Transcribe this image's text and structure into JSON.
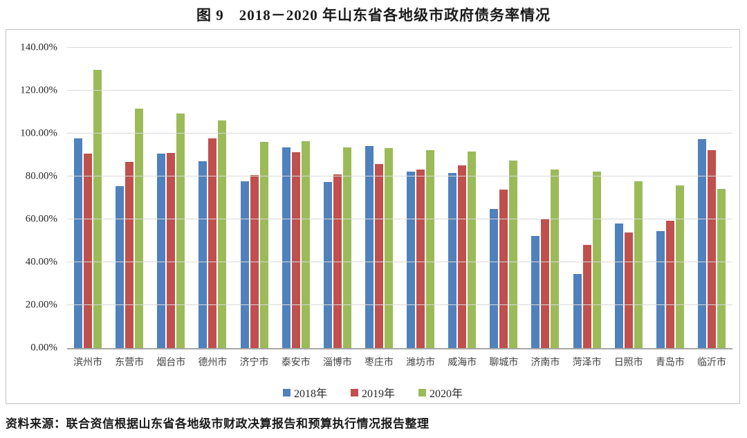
{
  "figure": {
    "title": "图 9　2018－2020 年山东省各地级市政府债务率情况",
    "source_note": "资料来源：联合资信根据山东省各地级市财政决算报告和预算执行情况报告整理"
  },
  "chart_data": {
    "type": "bar",
    "title": "图 9　2018－2020 年山东省各地级市政府债务率情况",
    "categories": [
      "滨州市",
      "东营市",
      "烟台市",
      "德州市",
      "济宁市",
      "泰安市",
      "淄博市",
      "枣庄市",
      "潍坊市",
      "威海市",
      "聊城市",
      "济南市",
      "菏泽市",
      "日照市",
      "青岛市",
      "临沂市"
    ],
    "series": [
      {
        "name": "2018年",
        "color": "#4F81BD",
        "values": [
          97.6,
          75.5,
          90.6,
          87.1,
          77.8,
          93.5,
          77.5,
          94.2,
          82.3,
          81.5,
          64.7,
          52.4,
          34.5,
          58.2,
          54.5,
          97.4
        ]
      },
      {
        "name": "2019年",
        "color": "#C0504D",
        "values": [
          90.7,
          86.8,
          91.0,
          97.9,
          80.8,
          91.2,
          80.9,
          85.7,
          83.3,
          85.3,
          74.0,
          59.9,
          48.1,
          53.8,
          59.2,
          92.3
        ]
      },
      {
        "name": "2020年",
        "color": "#9BBB59",
        "values": [
          129.7,
          111.5,
          109.2,
          106.2,
          96.2,
          96.3,
          93.5,
          93.1,
          92.2,
          91.5,
          87.3,
          83.2,
          82.4,
          77.9,
          75.9,
          74.1
        ]
      }
    ],
    "xlabel": "",
    "ylabel": "",
    "ylim": [
      0,
      140
    ],
    "y_ticks": [
      "0.00%",
      "20.00%",
      "40.00%",
      "60.00%",
      "80.00%",
      "100.00%",
      "120.00%",
      "140.00%"
    ],
    "grid": true,
    "legend_position": "bottom",
    "unit": "percent"
  },
  "colors": {
    "grid": "#d9d9d9",
    "axis": "#a6a6a6",
    "frame_border": "#c3c3c3"
  }
}
